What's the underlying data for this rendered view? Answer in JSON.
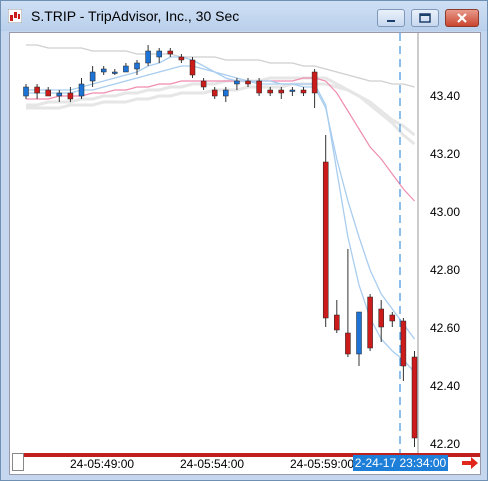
{
  "window": {
    "title": "S.TRIP - TripAdvisor, Inc., 30 Sec",
    "buttons": [
      "minimize",
      "maximize",
      "close"
    ]
  },
  "colors": {
    "up": "#1e73d6",
    "down": "#cc1b1b",
    "wick": "#333333",
    "ma_fast": "#a9cdef",
    "ma_pink": "#f08cb0",
    "ma_gray": "#cfcfcf",
    "crosshair": "#1e7fd9"
  },
  "axis": {
    "price_ticks": [
      "43.40",
      "43.20",
      "43.00",
      "42.80",
      "42.60",
      "42.40",
      "42.20"
    ],
    "time_ticks": [
      "24-05:49:00",
      "24-05:54:00",
      "24-05:59:00"
    ],
    "crosshair_time": "2-24-17 23:34:00"
  },
  "chart_data": {
    "type": "candlestick",
    "ylim": [
      42.18,
      43.58
    ],
    "candles": [
      {
        "o": 43.37,
        "h": 43.41,
        "l": 43.36,
        "c": 43.4
      },
      {
        "o": 43.4,
        "h": 43.41,
        "l": 43.36,
        "c": 43.38
      },
      {
        "o": 43.39,
        "h": 43.4,
        "l": 43.37,
        "c": 43.37
      },
      {
        "o": 43.37,
        "h": 43.39,
        "l": 43.35,
        "c": 43.38
      },
      {
        "o": 43.38,
        "h": 43.4,
        "l": 43.35,
        "c": 43.36
      },
      {
        "o": 43.37,
        "h": 43.43,
        "l": 43.36,
        "c": 43.41
      },
      {
        "o": 43.42,
        "h": 43.47,
        "l": 43.4,
        "c": 43.45
      },
      {
        "o": 43.45,
        "h": 43.47,
        "l": 43.44,
        "c": 43.46
      },
      {
        "o": 43.45,
        "h": 43.46,
        "l": 43.44,
        "c": 43.45
      },
      {
        "o": 43.45,
        "h": 43.48,
        "l": 43.45,
        "c": 43.47
      },
      {
        "o": 43.46,
        "h": 43.49,
        "l": 43.44,
        "c": 43.48
      },
      {
        "o": 43.48,
        "h": 43.54,
        "l": 43.47,
        "c": 43.52
      },
      {
        "o": 43.5,
        "h": 43.53,
        "l": 43.48,
        "c": 43.52
      },
      {
        "o": 43.52,
        "h": 43.53,
        "l": 43.5,
        "c": 43.51
      },
      {
        "o": 43.5,
        "h": 43.51,
        "l": 43.48,
        "c": 43.49
      },
      {
        "o": 43.49,
        "h": 43.5,
        "l": 43.43,
        "c": 43.44
      },
      {
        "o": 43.42,
        "h": 43.43,
        "l": 43.39,
        "c": 43.4
      },
      {
        "o": 43.39,
        "h": 43.4,
        "l": 43.36,
        "c": 43.37
      },
      {
        "o": 43.37,
        "h": 43.4,
        "l": 43.35,
        "c": 43.39
      },
      {
        "o": 43.41,
        "h": 43.43,
        "l": 43.39,
        "c": 43.42
      },
      {
        "o": 43.42,
        "h": 43.43,
        "l": 43.4,
        "c": 43.41
      },
      {
        "o": 43.42,
        "h": 43.43,
        "l": 43.37,
        "c": 43.38
      },
      {
        "o": 43.39,
        "h": 43.4,
        "l": 43.37,
        "c": 43.38
      },
      {
        "o": 43.39,
        "h": 43.4,
        "l": 43.36,
        "c": 43.38
      },
      {
        "o": 43.39,
        "h": 43.4,
        "l": 43.37,
        "c": 43.39
      },
      {
        "o": 43.39,
        "h": 43.4,
        "l": 43.37,
        "c": 43.38
      },
      {
        "o": 43.45,
        "h": 43.46,
        "l": 43.33,
        "c": 43.38
      },
      {
        "o": 43.15,
        "h": 43.24,
        "l": 42.6,
        "c": 42.63
      },
      {
        "o": 42.64,
        "h": 42.69,
        "l": 42.58,
        "c": 42.59
      },
      {
        "o": 42.58,
        "h": 42.86,
        "l": 42.5,
        "c": 42.51
      },
      {
        "o": 42.51,
        "h": 42.64,
        "l": 42.47,
        "c": 42.65
      },
      {
        "o": 42.7,
        "h": 42.71,
        "l": 42.52,
        "c": 42.53
      },
      {
        "o": 42.66,
        "h": 42.69,
        "l": 42.55,
        "c": 42.6
      },
      {
        "o": 42.64,
        "h": 42.65,
        "l": 42.6,
        "c": 42.62
      },
      {
        "o": 42.62,
        "h": 42.63,
        "l": 42.42,
        "c": 42.47
      },
      {
        "o": 42.5,
        "h": 42.52,
        "l": 42.2,
        "c": 42.23
      }
    ],
    "ma_fast_a": [
      43.39,
      43.39,
      43.39,
      43.39,
      43.39,
      43.4,
      43.41,
      43.42,
      43.43,
      43.44,
      43.45,
      43.47,
      43.48,
      43.5,
      43.5,
      43.49,
      43.47,
      43.45,
      43.43,
      43.42,
      43.42,
      43.41,
      43.41,
      43.41,
      43.41,
      43.4,
      43.4,
      43.33,
      43.16,
      43.02,
      42.9,
      42.79,
      42.71,
      42.66,
      42.61,
      42.56
    ],
    "ma_fast_b": [
      43.38,
      43.38,
      43.38,
      43.38,
      43.38,
      43.39,
      43.39,
      43.4,
      43.41,
      43.42,
      43.43,
      43.44,
      43.45,
      43.46,
      43.47,
      43.47,
      43.46,
      43.45,
      43.44,
      43.43,
      43.42,
      43.42,
      43.42,
      43.41,
      43.41,
      43.41,
      43.41,
      43.34,
      43.12,
      42.9,
      42.74,
      42.63,
      42.56,
      42.52,
      42.49,
      42.45
    ],
    "ma_pink": [
      43.36,
      43.36,
      43.36,
      43.37,
      43.37,
      43.37,
      43.38,
      43.38,
      43.39,
      43.39,
      43.4,
      43.4,
      43.41,
      43.41,
      43.42,
      43.42,
      43.42,
      43.42,
      43.42,
      43.42,
      43.42,
      43.42,
      43.42,
      43.42,
      43.42,
      43.43,
      43.43,
      43.42,
      43.38,
      43.32,
      43.26,
      43.2,
      43.16,
      43.11,
      43.06,
      43.02
    ],
    "ma_gray_upper": [
      43.54,
      43.54,
      43.53,
      43.53,
      43.53,
      43.53,
      43.52,
      43.52,
      43.52,
      43.52,
      43.51,
      43.51,
      43.51,
      43.51,
      43.5,
      43.5,
      43.5,
      43.5,
      43.49,
      43.49,
      43.49,
      43.49,
      43.48,
      43.48,
      43.48,
      43.47,
      43.47,
      43.46,
      43.45,
      43.44,
      43.43,
      43.42,
      43.42,
      43.41,
      43.41,
      43.4
    ],
    "ma_gray_mid": [
      43.34,
      43.34,
      43.35,
      43.35,
      43.35,
      43.36,
      43.36,
      43.37,
      43.37,
      43.38,
      43.38,
      43.39,
      43.39,
      43.4,
      43.4,
      43.41,
      43.41,
      43.41,
      43.42,
      43.42,
      43.42,
      43.42,
      43.43,
      43.43,
      43.43,
      43.43,
      43.43,
      43.43,
      43.41,
      43.39,
      43.37,
      43.34,
      43.31,
      43.28,
      43.24,
      43.21
    ],
    "ma_gray_low": [
      43.33,
      43.33,
      43.33,
      43.33,
      43.34,
      43.34,
      43.34,
      43.35,
      43.35,
      43.35,
      43.36,
      43.36,
      43.37,
      43.37,
      43.38,
      43.38,
      43.38,
      43.39,
      43.39,
      43.39,
      43.4,
      43.4,
      43.4,
      43.4,
      43.41,
      43.41,
      43.41,
      43.41,
      43.4,
      43.39,
      43.37,
      43.35,
      43.32,
      43.29,
      43.27,
      43.24
    ]
  }
}
